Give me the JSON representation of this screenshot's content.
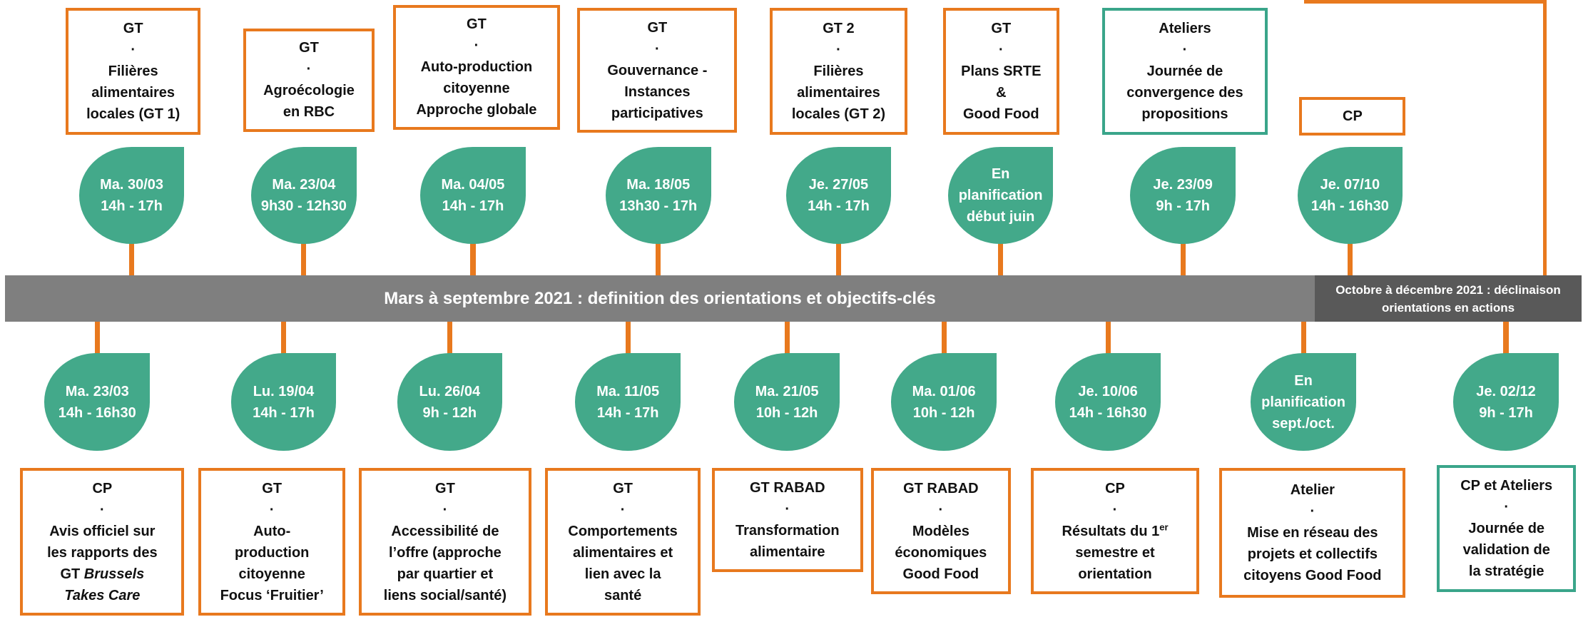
{
  "top": [
    {
      "box": {
        "color": "#e8791e",
        "lines": [
          "GT",
          "·",
          "Filières",
          "alimentaires",
          "locales (GT 1)"
        ]
      },
      "date": [
        "Ma. 30/03",
        "14h - 17h"
      ]
    },
    {
      "box": {
        "color": "#e8791e",
        "lines": [
          "GT",
          "·",
          "Agroécologie",
          "en RBC"
        ]
      },
      "date": [
        "Ma. 23/04",
        "9h30 - 12h30"
      ]
    },
    {
      "box": {
        "color": "#e8791e",
        "lines": [
          "GT",
          "·",
          "Auto-production",
          "citoyenne",
          "Approche globale"
        ]
      },
      "date": [
        "Ma. 04/05",
        "14h - 17h"
      ]
    },
    {
      "box": {
        "color": "#e8791e",
        "lines": [
          "GT",
          "·",
          "Gouvernance -",
          "Instances",
          "participatives"
        ]
      },
      "date": [
        "Ma. 18/05",
        "13h30 - 17h"
      ]
    },
    {
      "box": {
        "color": "#e8791e",
        "lines": [
          "GT 2",
          "·",
          "Filières",
          "alimentaires",
          "locales (GT 2)"
        ]
      },
      "date": [
        "Je. 27/05",
        "14h - 17h"
      ]
    },
    {
      "box": {
        "color": "#e8791e",
        "lines": [
          "GT",
          "·",
          "Plans SRTE",
          "&",
          "Good Food"
        ]
      },
      "date": [
        "En",
        "planification",
        "début juin"
      ]
    },
    {
      "box": {
        "color": "#3aa58a",
        "lines": [
          "Ateliers",
          "·",
          "Journée de",
          "convergence des",
          "propositions"
        ]
      },
      "date": [
        "Je. 23/09",
        "9h - 17h"
      ]
    },
    {
      "box": {
        "color": "#e8791e",
        "lines": [
          "CP"
        ]
      },
      "date": [
        "Je. 07/10",
        "14h - 16h30"
      ]
    }
  ],
  "band": {
    "left": "Mars à septembre 2021 : definition des orientations et objectifs-clés",
    "right": [
      "Octobre à décembre 2021 : déclinaison",
      "orientations en actions"
    ]
  },
  "bottom": [
    {
      "date": [
        "Ma. 23/03",
        "14h - 16h30"
      ],
      "box": {
        "color": "#e8791e",
        "lines": [
          "CP",
          "·",
          "Avis officiel sur",
          "les rapports des",
          [
            {
              "text": "GT "
            },
            {
              "text": "Brussels",
              "style": "italic"
            }
          ],
          [
            {
              "text": "Takes Care",
              "style": "italic"
            }
          ]
        ]
      }
    },
    {
      "date": [
        "Lu. 19/04",
        "14h - 17h"
      ],
      "box": {
        "color": "#e8791e",
        "lines": [
          "GT",
          "·",
          "Auto-",
          "production",
          "citoyenne",
          "Focus ‘Fruitier’"
        ]
      }
    },
    {
      "date": [
        "Lu. 26/04",
        "9h - 12h"
      ],
      "box": {
        "color": "#e8791e",
        "lines": [
          "GT",
          "·",
          "Accessibilité de",
          "l’offre (approche",
          "par quartier et",
          "liens social/santé)"
        ]
      }
    },
    {
      "date": [
        "Ma. 11/05",
        "14h - 17h"
      ],
      "box": {
        "color": "#e8791e",
        "lines": [
          "GT",
          "·",
          "Comportements",
          "alimentaires et",
          "lien avec la",
          "santé"
        ]
      }
    },
    {
      "date": [
        "Ma. 21/05",
        "10h - 12h"
      ],
      "box": {
        "color": "#e8791e",
        "lines": [
          "GT RABAD",
          "·",
          "Transformation",
          "alimentaire"
        ]
      }
    },
    {
      "date": [
        "Ma. 01/06",
        "10h - 12h"
      ],
      "box": {
        "color": "#e8791e",
        "lines": [
          "GT RABAD",
          "·",
          "Modèles",
          "économiques",
          "Good Food"
        ]
      }
    },
    {
      "date": [
        "Je. 10/06",
        "14h - 16h30"
      ],
      "box": {
        "color": "#e8791e",
        "lines": [
          "CP",
          "·",
          [
            {
              "text": "Résultats du 1"
            },
            {
              "text": "er",
              "style": "sup"
            }
          ],
          "semestre et",
          "orientation"
        ]
      }
    },
    {
      "date": [
        "En",
        "planification",
        "sept./oct."
      ],
      "box": {
        "color": "#e8791e",
        "lines": [
          "Atelier",
          "·",
          "Mise en réseau des",
          "projets et collectifs",
          "citoyens Good Food"
        ]
      }
    },
    {
      "date": [
        "Je. 02/12",
        "9h - 17h"
      ],
      "box": {
        "color": "#3aa58a",
        "lines": [
          "CP et Ateliers",
          "·",
          "Journée de",
          "validation de",
          "la stratégie"
        ]
      }
    }
  ]
}
